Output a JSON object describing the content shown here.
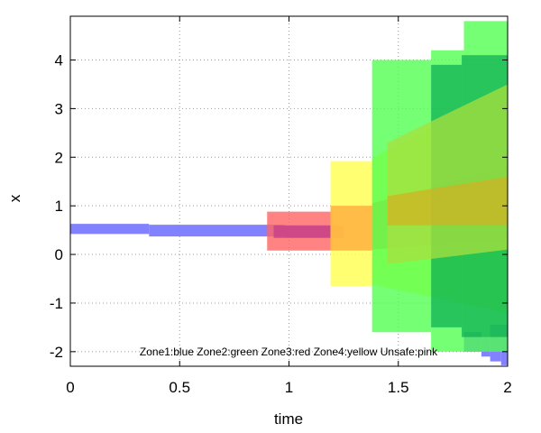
{
  "chart_data": {
    "type": "area",
    "title": "",
    "xlabel": "time",
    "ylabel": "x",
    "xlim": [
      0,
      2
    ],
    "ylim": [
      -2.3,
      4.9
    ],
    "x_ticks": [
      0,
      0.5,
      1,
      1.5,
      2
    ],
    "x_tick_labels": [
      "0",
      "0.5",
      "1",
      "1.5",
      "2"
    ],
    "y_ticks": [
      -2,
      -1,
      0,
      1,
      2,
      3,
      4
    ],
    "y_tick_labels": [
      "-2",
      "-1",
      "0",
      "1",
      "2",
      "3",
      "4"
    ],
    "grid": true,
    "annotation": "Zone1:blue Zone2:green Zone3:red Zone4:yellow Unsafe:pink",
    "colors": {
      "blue": "#7b7bff",
      "green": "#4dff4d",
      "dark_green": "#00a550",
      "red": "#ff6464",
      "yellow": "#ffff4d",
      "orange": "#ffb040",
      "olive": "#a8e040",
      "magenta": "#c8408a",
      "gold": "#d4b020"
    },
    "series": [
      {
        "color": "blue",
        "opacity": 0.95,
        "regions": [
          {
            "x0": 0.0,
            "x1": 0.36,
            "ylo": 0.42,
            "yhi": 0.63
          },
          {
            "x0": 0.36,
            "x1": 0.98,
            "ylo": 0.37,
            "yhi": 0.61
          },
          {
            "x0": 0.98,
            "x1": 1.25,
            "ylo": 0.35,
            "yhi": 0.58
          },
          {
            "x0": 1.8,
            "x1": 1.88,
            "ylo": -2.0,
            "yhi": -1.6
          },
          {
            "x0": 1.88,
            "x1": 1.92,
            "ylo": -2.1,
            "yhi": -1.7
          },
          {
            "x0": 1.92,
            "x1": 1.97,
            "ylo": -2.2,
            "yhi": -1.45
          },
          {
            "x0": 1.97,
            "x1": 2.0,
            "ylo": -2.28,
            "yhi": -1.45
          }
        ]
      },
      {
        "color": "red",
        "opacity": 0.8,
        "regions": [
          {
            "x0": 0.9,
            "x1": 1.2,
            "ylo": 0.08,
            "yhi": 0.88
          }
        ]
      },
      {
        "color": "magenta",
        "opacity": 0.8,
        "regions": [
          {
            "x0": 0.93,
            "x1": 1.25,
            "ylo": 0.34,
            "yhi": 0.6
          }
        ]
      },
      {
        "color": "yellow",
        "opacity": 0.8,
        "regions": [
          {
            "x0": 1.19,
            "x1": 1.38,
            "ylo": -0.65,
            "yhi": 1.92
          },
          {
            "x0": 1.38,
            "x1": 2.0,
            "ylo_start": -0.62,
            "ylo_end": -1.2,
            "yhi_start": 1.98,
            "yhi_end": 3.5
          }
        ]
      },
      {
        "color": "orange",
        "opacity": 0.85,
        "regions": [
          {
            "x0": 1.19,
            "x1": 1.38,
            "ylo": 0.08,
            "yhi": 1.0
          },
          {
            "x0": 1.38,
            "x1": 2.0,
            "ylo_start": 0.1,
            "ylo_end": 0.3,
            "yhi_start": 1.05,
            "yhi_end": 1.8
          }
        ]
      },
      {
        "color": "green",
        "opacity": 0.78,
        "regions": [
          {
            "x0": 1.38,
            "x1": 1.65,
            "ylo": -1.6,
            "yhi": 4.0
          },
          {
            "x0": 1.65,
            "x1": 1.8,
            "ylo": -2.0,
            "yhi": 4.2
          },
          {
            "x0": 1.8,
            "x1": 2.0,
            "ylo": -2.0,
            "yhi": 4.8
          }
        ]
      },
      {
        "color": "dark_green",
        "opacity": 0.65,
        "regions": [
          {
            "x0": 1.65,
            "x1": 1.79,
            "ylo": -1.5,
            "yhi": 3.9
          },
          {
            "x0": 1.79,
            "x1": 2.0,
            "ylo": -1.7,
            "yhi": 4.1
          }
        ]
      },
      {
        "color": "olive",
        "opacity": 0.75,
        "regions": [
          {
            "x0": 1.45,
            "x1": 2.0,
            "ylo_start": -0.2,
            "ylo_end": 0.1,
            "yhi_start": 2.3,
            "yhi_end": 3.5
          }
        ]
      },
      {
        "color": "gold",
        "opacity": 0.7,
        "regions": [
          {
            "x0": 1.45,
            "x1": 2.0,
            "ylo_start": 0.6,
            "ylo_end": 0.6,
            "yhi_start": 1.2,
            "yhi_end": 1.6
          }
        ]
      }
    ]
  }
}
